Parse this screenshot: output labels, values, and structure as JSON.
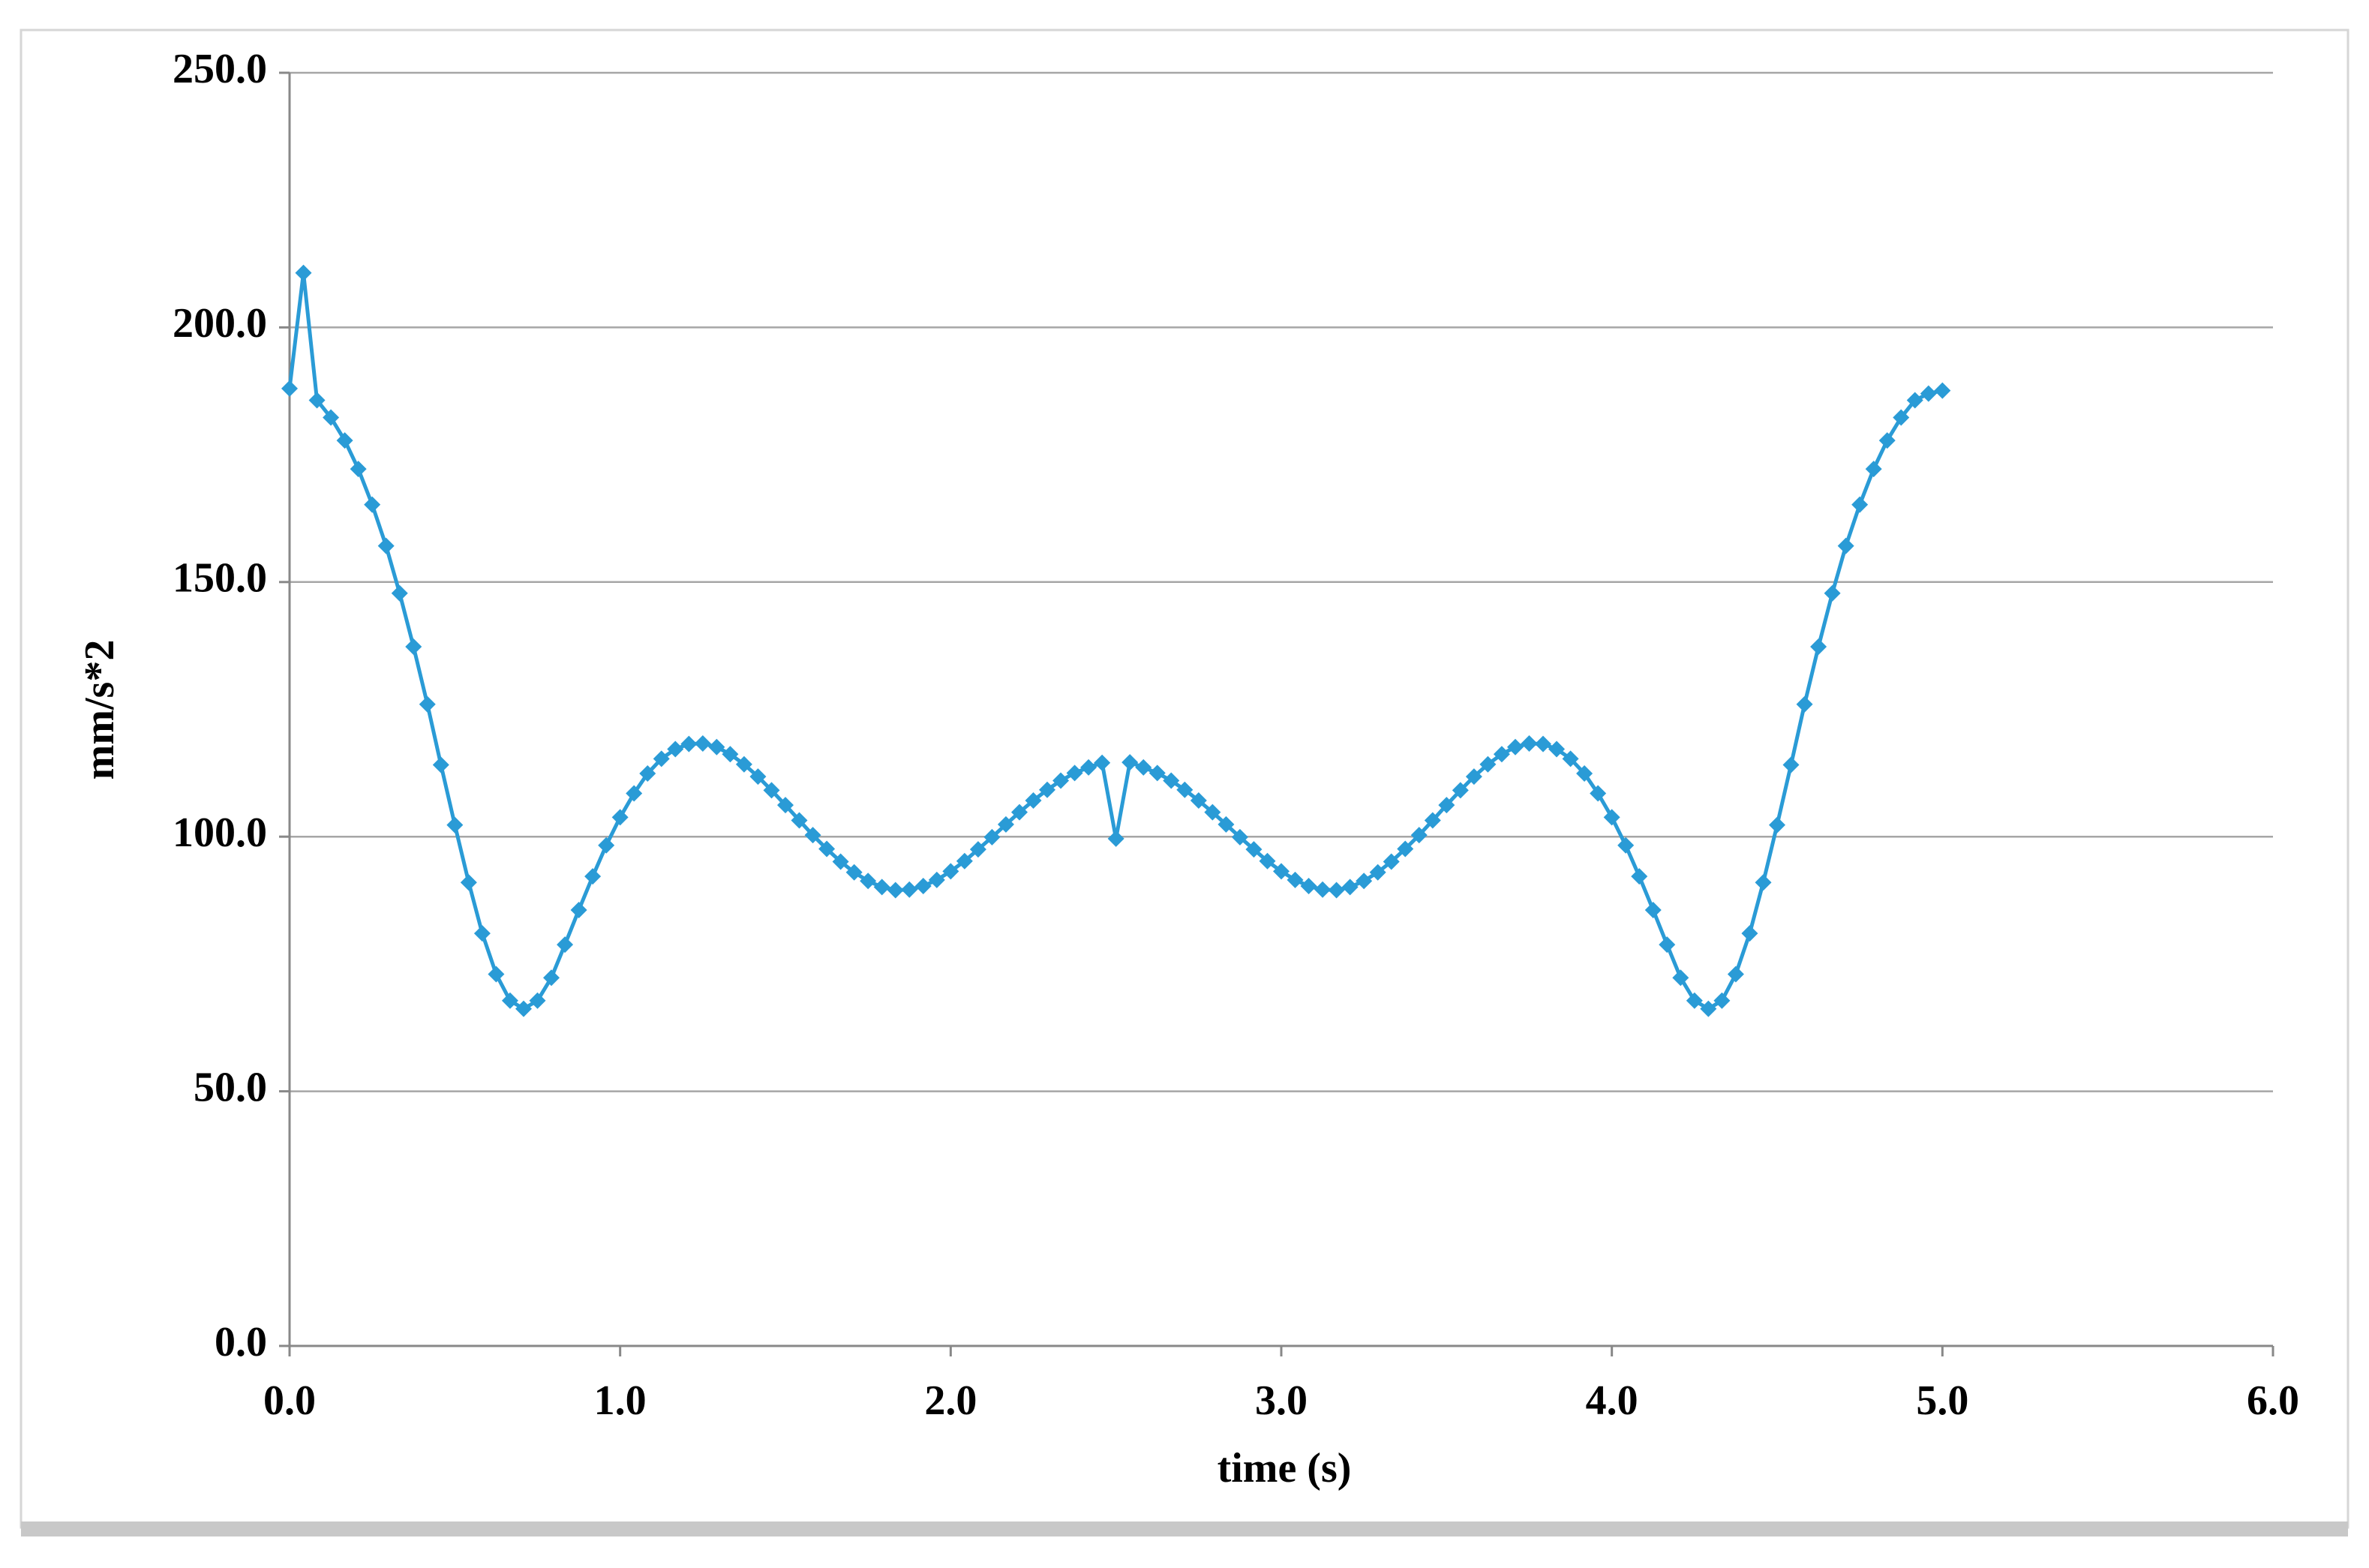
{
  "chart_data": {
    "type": "line",
    "xlabel": "time (s)",
    "ylabel": "mm/s*2",
    "x": [
      0,
      0.042,
      0.083,
      0.125,
      0.167,
      0.208,
      0.25,
      0.292,
      0.333,
      0.375,
      0.417,
      0.458,
      0.5,
      0.542,
      0.583,
      0.625,
      0.667,
      0.708,
      0.75,
      0.792,
      0.833,
      0.875,
      0.917,
      0.958,
      1,
      1.042,
      1.083,
      1.125,
      1.167,
      1.208,
      1.25,
      1.292,
      1.333,
      1.375,
      1.417,
      1.458,
      1.5,
      1.542,
      1.583,
      1.625,
      1.667,
      1.708,
      1.75,
      1.792,
      1.833,
      1.875,
      1.917,
      1.958,
      2,
      2.042,
      2.083,
      2.125,
      2.167,
      2.208,
      2.25,
      2.292,
      2.333,
      2.375,
      2.417,
      2.458,
      2.5,
      2.542,
      2.583,
      2.625,
      2.667,
      2.708,
      2.75,
      2.792,
      2.833,
      2.875,
      2.917,
      2.958,
      3,
      3.042,
      3.083,
      3.125,
      3.167,
      3.208,
      3.25,
      3.292,
      3.333,
      3.375,
      3.417,
      3.458,
      3.5,
      3.542,
      3.583,
      3.625,
      3.667,
      3.708,
      3.75,
      3.792,
      3.833,
      3.875,
      3.917,
      3.958,
      4,
      4.042,
      4.083,
      4.125,
      4.167,
      4.208,
      4.25,
      4.292,
      4.333,
      4.375,
      4.417,
      4.458,
      4.5,
      4.542,
      4.583,
      4.625,
      4.667,
      4.708,
      4.75,
      4.792,
      4.833,
      4.875,
      4.917,
      4.958,
      5
    ],
    "series": [
      {
        "color": "#2a9bd6",
        "values": [
          188.0,
          210.7,
          185.7,
          182.3,
          177.8,
          172.2,
          165.2,
          157.1,
          147.8,
          137.3,
          126.0,
          114.1,
          102.3,
          91.0,
          81.0,
          73.0,
          67.8,
          66.2,
          67.8,
          72.3,
          78.8,
          85.6,
          92.2,
          98.3,
          103.8,
          108.5,
          112.4,
          115.3,
          117.2,
          118.2,
          118.3,
          117.6,
          116.2,
          114.2,
          111.8,
          109.1,
          106.2,
          103.2,
          100.3,
          97.6,
          95.1,
          93.0,
          91.3,
          90.1,
          89.5,
          89.6,
          90.3,
          91.5,
          93.2,
          95.2,
          97.5,
          99.9,
          102.4,
          104.8,
          107.1,
          109.2,
          111.0,
          112.5,
          113.6,
          114.5,
          99.6,
          114.6,
          113.6,
          112.5,
          111.0,
          109.2,
          107.1,
          104.8,
          102.4,
          99.9,
          97.5,
          95.2,
          93.2,
          91.5,
          90.3,
          89.6,
          89.5,
          90.1,
          91.3,
          93.0,
          95.1,
          97.6,
          100.3,
          103.2,
          106.2,
          109.1,
          111.8,
          114.2,
          116.2,
          117.6,
          118.3,
          118.2,
          117.2,
          115.3,
          112.4,
          108.5,
          103.8,
          98.3,
          92.2,
          85.6,
          78.8,
          72.3,
          67.8,
          66.2,
          67.8,
          73.0,
          81.0,
          91.0,
          102.3,
          114.1,
          126.0,
          137.3,
          147.8,
          157.1,
          165.2,
          172.2,
          177.8,
          182.3,
          185.7,
          187.0,
          187.6
        ]
      }
    ],
    "xlim": [
      0,
      6
    ],
    "ylim": [
      0,
      250
    ],
    "xticks": [
      {
        "value": 0,
        "label": "0.0"
      },
      {
        "value": 1,
        "label": "1.0"
      },
      {
        "value": 2,
        "label": "2.0"
      },
      {
        "value": 3,
        "label": "3.0"
      },
      {
        "value": 4,
        "label": "4.0"
      },
      {
        "value": 5,
        "label": "5.0"
      },
      {
        "value": 6,
        "label": "6.0"
      }
    ],
    "yticks": [
      {
        "value": 0,
        "label": "0.0"
      },
      {
        "value": 50,
        "label": "50.0"
      },
      {
        "value": 100,
        "label": "100.0"
      },
      {
        "value": 150,
        "label": "150.0"
      },
      {
        "value": 200,
        "label": "200.0"
      },
      {
        "value": 250,
        "label": "250.0"
      }
    ],
    "grid": true,
    "marker": "diamond"
  }
}
